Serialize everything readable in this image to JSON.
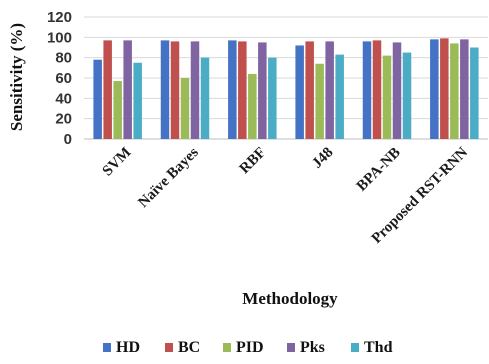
{
  "chart_data": {
    "type": "bar",
    "title": "",
    "xlabel": "Methodology",
    "ylabel": "Sensitivity (%)",
    "ylim": [
      0,
      120
    ],
    "yticks": [
      "0",
      "20",
      "40",
      "60",
      "80",
      "100",
      "120"
    ],
    "grid": true,
    "legend_position": "bottom",
    "categories": [
      "SVM",
      "Naïve Bayes",
      "RBF",
      "J48",
      "BPA-NB",
      "Proposed RST-RNN"
    ],
    "series": [
      {
        "name": "HD",
        "color": "#4472C4",
        "values": [
          78,
          97,
          97,
          92,
          96,
          98
        ]
      },
      {
        "name": "BC",
        "color": "#C0504D",
        "values": [
          97,
          96,
          96,
          96,
          97,
          99
        ]
      },
      {
        "name": "PID",
        "color": "#9BBB59",
        "values": [
          57,
          60,
          64,
          74,
          82,
          94
        ]
      },
      {
        "name": "Pks",
        "color": "#8064A2",
        "values": [
          97,
          96,
          95,
          96,
          95,
          98
        ]
      },
      {
        "name": "Thd",
        "color": "#4BACC6",
        "values": [
          75,
          80,
          80,
          83,
          85,
          90
        ]
      }
    ]
  }
}
